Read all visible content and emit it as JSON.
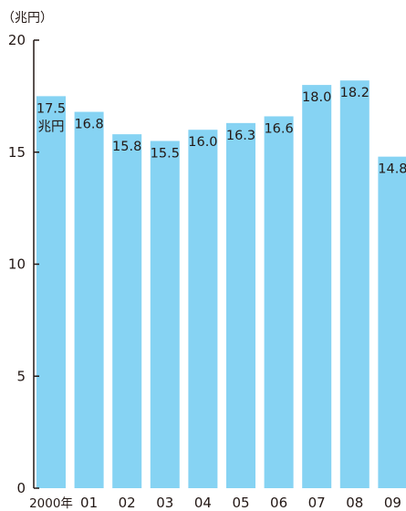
{
  "chart_data": {
    "type": "bar",
    "unit_label": "（兆円）",
    "categories": [
      "2000年",
      "01",
      "02",
      "03",
      "04",
      "05",
      "06",
      "07",
      "08",
      "09"
    ],
    "values": [
      17.5,
      16.8,
      15.8,
      15.5,
      16.0,
      16.3,
      16.6,
      18.0,
      18.2,
      14.8
    ],
    "data_labels": [
      "17.5",
      "16.8",
      "15.8",
      "15.5",
      "16.0",
      "16.3",
      "16.6",
      "18.0",
      "18.2",
      "14.8"
    ],
    "first_label_unit": "兆円",
    "yticks": [
      "0",
      "5",
      "10",
      "15",
      "20"
    ],
    "ylim": [
      0,
      20
    ],
    "bar_color": "#86d3f3",
    "axis_color": "#231815",
    "grid": false,
    "legend": "none"
  }
}
